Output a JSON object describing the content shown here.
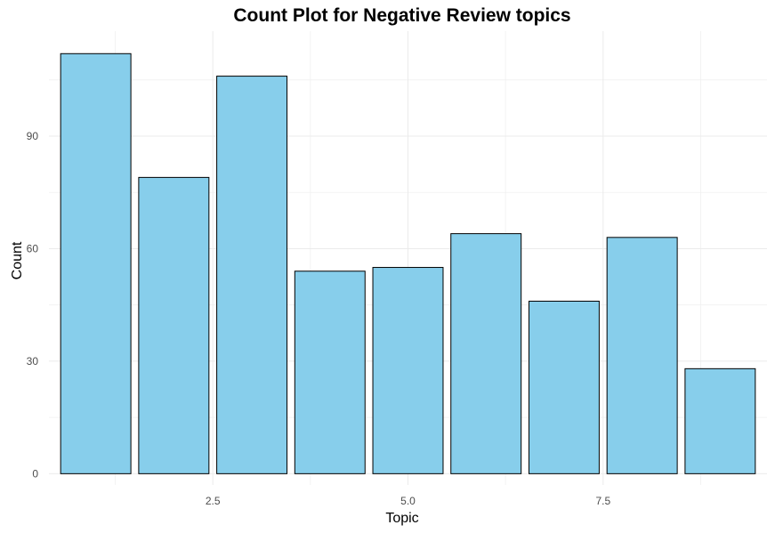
{
  "chart_data": {
    "type": "bar",
    "title": "Count Plot for Negative Review topics",
    "xlabel": "Topic",
    "ylabel": "Count",
    "x": [
      1,
      2,
      3,
      4,
      5,
      6,
      7,
      8,
      9
    ],
    "values": [
      112,
      79,
      106,
      54,
      55,
      64,
      46,
      63,
      28
    ],
    "xlim": [
      0.4,
      9.6
    ],
    "ylim": [
      -3,
      118
    ],
    "x_ticks": [
      2.5,
      5.0,
      7.5
    ],
    "x_tick_labels": [
      "2.5",
      "5.0",
      "7.5"
    ],
    "y_ticks": [
      0,
      30,
      60,
      90
    ],
    "y_tick_labels": [
      "0",
      "30",
      "60",
      "90"
    ],
    "bar_fill": "#87ceeb",
    "bar_stroke": "#000000",
    "grid": true,
    "legend": "none"
  }
}
